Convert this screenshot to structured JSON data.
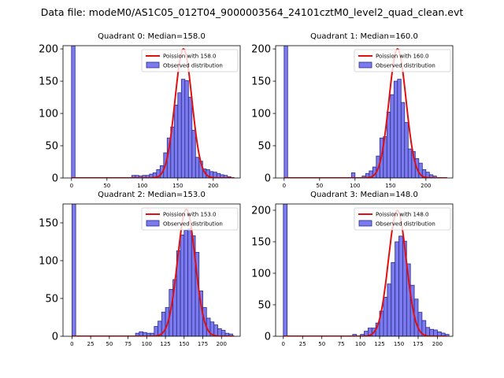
{
  "figure_title": "Data file: modeM0/AS1C05_012T04_9000003564_24101cztM0_level2_quad_clean.evt",
  "chart_data": [
    {
      "type": "bar",
      "title": "Quadrant 0: Median=158.0",
      "median": 158.0,
      "legend": [
        "Poission with 158.0",
        "Observed distribution"
      ],
      "xlim": [
        -12,
        238
      ],
      "ylim": [
        0,
        205
      ],
      "xticks": [
        0,
        50,
        100,
        150,
        200
      ],
      "yticks": [
        0,
        50,
        100,
        150,
        200
      ],
      "fit_peak": 200,
      "bin_width": 5,
      "bins": [
        [
          0,
          205
        ],
        [
          85,
          4
        ],
        [
          90,
          4
        ],
        [
          95,
          3
        ],
        [
          100,
          4
        ],
        [
          105,
          4
        ],
        [
          110,
          6
        ],
        [
          115,
          8
        ],
        [
          120,
          13
        ],
        [
          125,
          19
        ],
        [
          130,
          39
        ],
        [
          135,
          62
        ],
        [
          140,
          79
        ],
        [
          145,
          113
        ],
        [
          150,
          132
        ],
        [
          155,
          153
        ],
        [
          160,
          151
        ],
        [
          165,
          125
        ],
        [
          170,
          74
        ],
        [
          175,
          32
        ],
        [
          180,
          26
        ],
        [
          185,
          14
        ],
        [
          190,
          13
        ],
        [
          195,
          10
        ],
        [
          200,
          9
        ],
        [
          205,
          7
        ],
        [
          210,
          5
        ],
        [
          215,
          4
        ],
        [
          220,
          2
        ]
      ]
    },
    {
      "type": "bar",
      "title": "Quadrant 1: Median=160.0",
      "median": 160.0,
      "legend": [
        "Poission with 160.0",
        "Observed distribution"
      ],
      "xlim": [
        -12,
        238
      ],
      "ylim": [
        0,
        205
      ],
      "xticks": [
        0,
        50,
        100,
        150,
        200
      ],
      "yticks": [
        0,
        50,
        100,
        150,
        200
      ],
      "fit_peak": 200,
      "bin_width": 5,
      "bins": [
        [
          0,
          205
        ],
        [
          95,
          8
        ],
        [
          110,
          3
        ],
        [
          115,
          7
        ],
        [
          120,
          11
        ],
        [
          125,
          17
        ],
        [
          130,
          34
        ],
        [
          135,
          62
        ],
        [
          140,
          64
        ],
        [
          145,
          102
        ],
        [
          150,
          129
        ],
        [
          155,
          150
        ],
        [
          160,
          153
        ],
        [
          165,
          117
        ],
        [
          170,
          86
        ],
        [
          175,
          45
        ],
        [
          180,
          41
        ],
        [
          185,
          30
        ],
        [
          190,
          23
        ],
        [
          195,
          13
        ],
        [
          200,
          9
        ],
        [
          205,
          5
        ],
        [
          210,
          3
        ]
      ]
    },
    {
      "type": "bar",
      "title": "Quadrant 2: Median=153.0",
      "median": 153.0,
      "legend": [
        "Poission with 153.0",
        "Observed distribution"
      ],
      "xlim": [
        -12,
        225
      ],
      "ylim": [
        0,
        175
      ],
      "xticks": [
        0,
        25,
        50,
        75,
        100,
        125,
        150,
        175,
        200
      ],
      "yticks": [
        0,
        50,
        100,
        150
      ],
      "fit_peak": 168,
      "bin_width": 5,
      "bins": [
        [
          0,
          175
        ],
        [
          85,
          4
        ],
        [
          90,
          6
        ],
        [
          95,
          5
        ],
        [
          100,
          4
        ],
        [
          105,
          4
        ],
        [
          110,
          13
        ],
        [
          115,
          20
        ],
        [
          120,
          32
        ],
        [
          125,
          38
        ],
        [
          130,
          62
        ],
        [
          135,
          75
        ],
        [
          140,
          113
        ],
        [
          145,
          134
        ],
        [
          150,
          140
        ],
        [
          155,
          142
        ],
        [
          160,
          133
        ],
        [
          165,
          111
        ],
        [
          170,
          60
        ],
        [
          175,
          38
        ],
        [
          180,
          24
        ],
        [
          185,
          19
        ],
        [
          190,
          15
        ],
        [
          195,
          10
        ],
        [
          200,
          8
        ],
        [
          205,
          4
        ],
        [
          210,
          3
        ]
      ]
    },
    {
      "type": "bar",
      "title": "Quadrant 3: Median=148.0",
      "median": 148.0,
      "legend": [
        "Poission with 148.0",
        "Observed distribution"
      ],
      "xlim": [
        -10,
        220
      ],
      "ylim": [
        0,
        210
      ],
      "xticks": [
        0,
        25,
        50,
        75,
        100,
        125,
        150,
        175,
        200
      ],
      "yticks": [
        0,
        50,
        100,
        150,
        200
      ],
      "fit_peak": 200,
      "bin_width": 5,
      "bins": [
        [
          0,
          210
        ],
        [
          90,
          3
        ],
        [
          100,
          3
        ],
        [
          105,
          8
        ],
        [
          110,
          13
        ],
        [
          115,
          13
        ],
        [
          120,
          21
        ],
        [
          125,
          40
        ],
        [
          130,
          62
        ],
        [
          135,
          83
        ],
        [
          140,
          117
        ],
        [
          145,
          150
        ],
        [
          150,
          159
        ],
        [
          155,
          151
        ],
        [
          160,
          115
        ],
        [
          165,
          81
        ],
        [
          170,
          59
        ],
        [
          175,
          38
        ],
        [
          180,
          25
        ],
        [
          185,
          14
        ],
        [
          190,
          11
        ],
        [
          195,
          10
        ],
        [
          200,
          7
        ],
        [
          205,
          5
        ],
        [
          210,
          3
        ]
      ]
    }
  ]
}
